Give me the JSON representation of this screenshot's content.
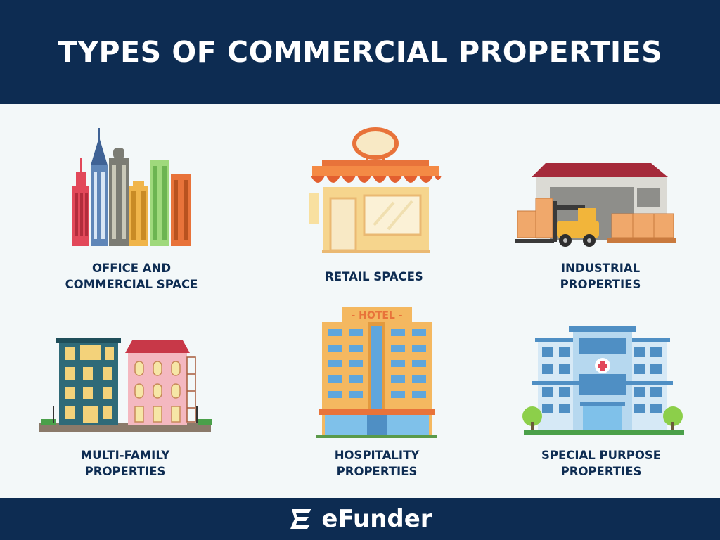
{
  "header": {
    "title": "TYPES OF COMMERCIAL PROPERTIES"
  },
  "items": [
    {
      "name": "office",
      "lines": [
        "OFFICE AND",
        "COMMERCIAL SPACE"
      ]
    },
    {
      "name": "retail",
      "lines": [
        "RETAIL SPACES"
      ],
      "sign": ""
    },
    {
      "name": "industrial",
      "lines": [
        "INDUSTRIAL",
        "PROPERTIES"
      ]
    },
    {
      "name": "multi-family",
      "lines": [
        "MULTI-FAMILY",
        "PROPERTIES"
      ]
    },
    {
      "name": "hospitality",
      "lines": [
        "HOSPITALITY",
        "PROPERTIES"
      ],
      "sign": "- HOTEL -"
    },
    {
      "name": "special-purpose",
      "lines": [
        "SPECIAL PURPOSE",
        "PROPERTIES"
      ]
    }
  ],
  "footer": {
    "brand": "eFunder"
  },
  "colors": {
    "navy": "#0d2c52",
    "background": "#f3f8f9",
    "accent_orange": "#e8733a"
  }
}
